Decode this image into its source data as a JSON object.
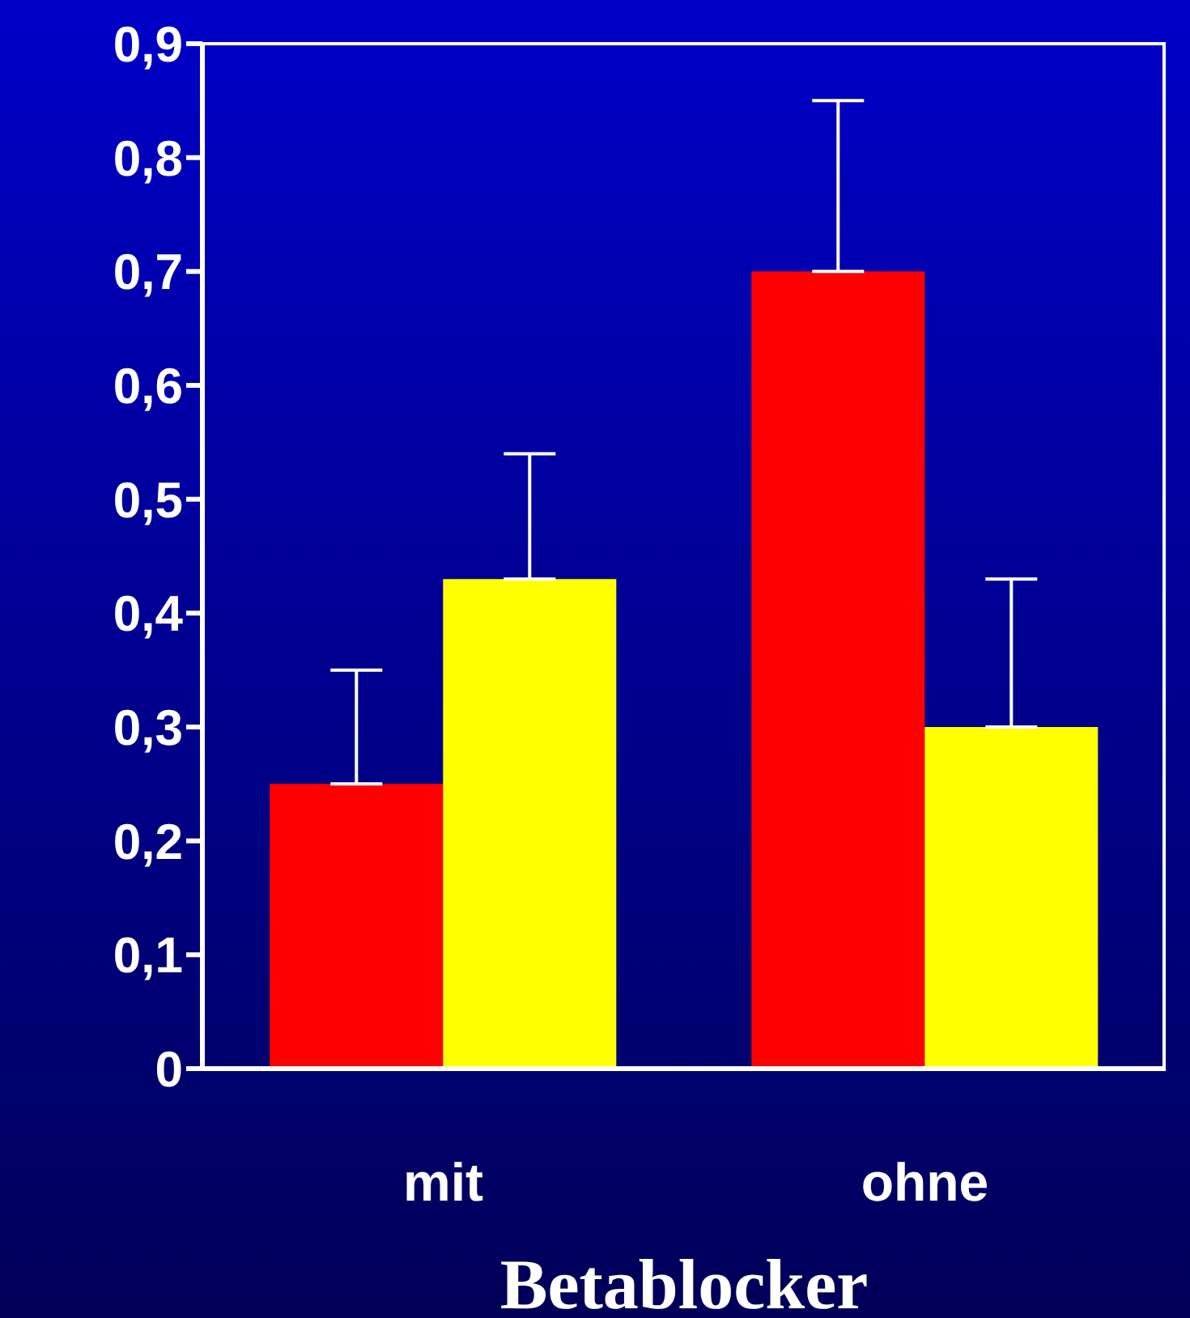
{
  "chart_data": {
    "type": "bar",
    "xlabel": "Betablocker",
    "categories": [
      "mit",
      "ohne"
    ],
    "series": [
      {
        "color": "#ff0000",
        "values": [
          0.25,
          0.7
        ],
        "errors": [
          [
            0.25,
            0.35
          ],
          [
            0.7,
            0.85
          ]
        ]
      },
      {
        "color": "#ffff00",
        "values": [
          0.43,
          0.3
        ],
        "errors": [
          [
            0.43,
            0.54
          ],
          [
            0.3,
            0.43
          ]
        ]
      }
    ],
    "ylim": [
      0,
      0.9
    ],
    "yticks": [
      {
        "value": 0,
        "label": "0"
      },
      {
        "value": 0.1,
        "label": "0,1"
      },
      {
        "value": 0.2,
        "label": "0,2"
      },
      {
        "value": 0.3,
        "label": "0,3"
      },
      {
        "value": 0.4,
        "label": "0,4"
      },
      {
        "value": 0.5,
        "label": "0,5"
      },
      {
        "value": 0.6,
        "label": "0,6"
      },
      {
        "value": 0.7,
        "label": "0,7"
      },
      {
        "value": 0.8,
        "label": "0,8"
      },
      {
        "value": 0.9,
        "label": "0,9"
      }
    ],
    "grid": false,
    "legend": false
  }
}
